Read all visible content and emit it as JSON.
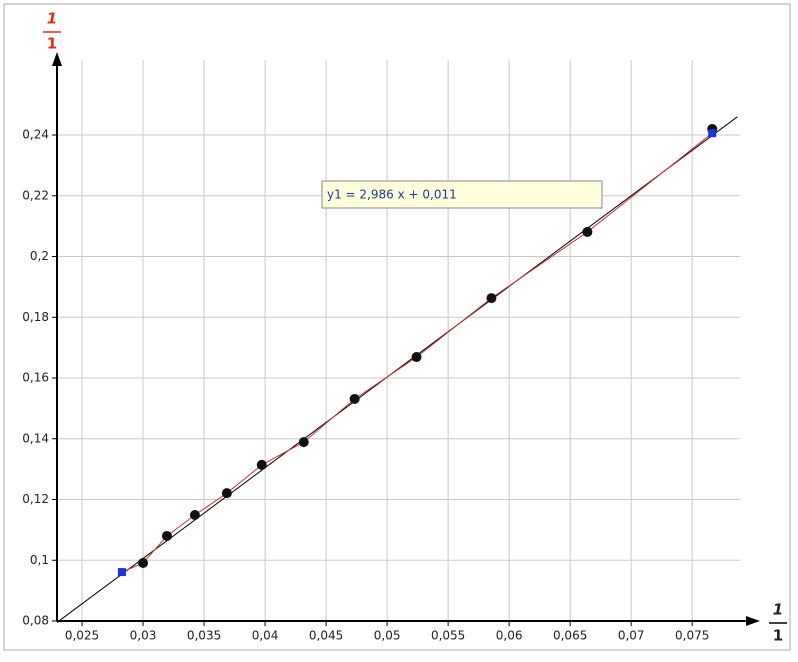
{
  "chart_data": {
    "type": "scatter",
    "annotation": "y1 = 2,986 x + 0,011",
    "fit": {
      "slope": 2.986,
      "intercept": 0.011,
      "color": "#000000"
    },
    "y_label": {
      "numerator": "1",
      "denominator": "1"
    },
    "x_label": {
      "numerator": "1",
      "denominator": "1"
    },
    "xlim": [
      0.02295,
      0.0799
    ],
    "ylim": [
      0.08,
      0.2647
    ],
    "xticks": [
      {
        "value": 0.025,
        "label": "0,025"
      },
      {
        "value": 0.03,
        "label": "0,03"
      },
      {
        "value": 0.035,
        "label": "0,035"
      },
      {
        "value": 0.04,
        "label": "0,04"
      },
      {
        "value": 0.045,
        "label": "0,045"
      },
      {
        "value": 0.05,
        "label": "0,05"
      },
      {
        "value": 0.055,
        "label": "0,055"
      },
      {
        "value": 0.06,
        "label": "0,06"
      },
      {
        "value": 0.065,
        "label": "0,065"
      },
      {
        "value": 0.07,
        "label": "0,07"
      },
      {
        "value": 0.075,
        "label": "0,075"
      }
    ],
    "yticks": [
      {
        "value": 0.08,
        "label": "0,08"
      },
      {
        "value": 0.1,
        "label": "0,1"
      },
      {
        "value": 0.12,
        "label": "0,12"
      },
      {
        "value": 0.14,
        "label": "0,14"
      },
      {
        "value": 0.16,
        "label": "0,16"
      },
      {
        "value": 0.18,
        "label": "0,18"
      },
      {
        "value": 0.2,
        "label": "0,2"
      },
      {
        "value": 0.22,
        "label": "0,22"
      },
      {
        "value": 0.24,
        "label": "0,24"
      }
    ],
    "grid": true,
    "series": [
      {
        "color": "#cc3333",
        "kind": "line",
        "x": [
          0.02827,
          0.03,
          0.03196,
          0.03425,
          0.03687,
          0.03973,
          0.04317,
          0.04734,
          0.05241,
          0.05855,
          0.06641,
          0.07664
        ],
        "values": [
          0.0961,
          0.0991,
          0.108,
          0.1149,
          0.1221,
          0.1314,
          0.1389,
          0.1531,
          0.1669,
          0.1863,
          0.2081,
          0.2406
        ]
      },
      {
        "color": "#111111",
        "kind": "circle",
        "x": [
          0.03,
          0.03196,
          0.03425,
          0.03687,
          0.03973,
          0.04317,
          0.04734,
          0.05241,
          0.05855,
          0.06641,
          0.07664
        ],
        "values": [
          0.0991,
          0.108,
          0.1149,
          0.1221,
          0.1314,
          0.1389,
          0.1531,
          0.1669,
          0.1863,
          0.2081,
          0.242
        ]
      },
      {
        "color": "#1a33dd",
        "kind": "square",
        "x": [
          0.02827,
          0.07664
        ],
        "values": [
          0.0961,
          0.2406
        ]
      }
    ]
  }
}
